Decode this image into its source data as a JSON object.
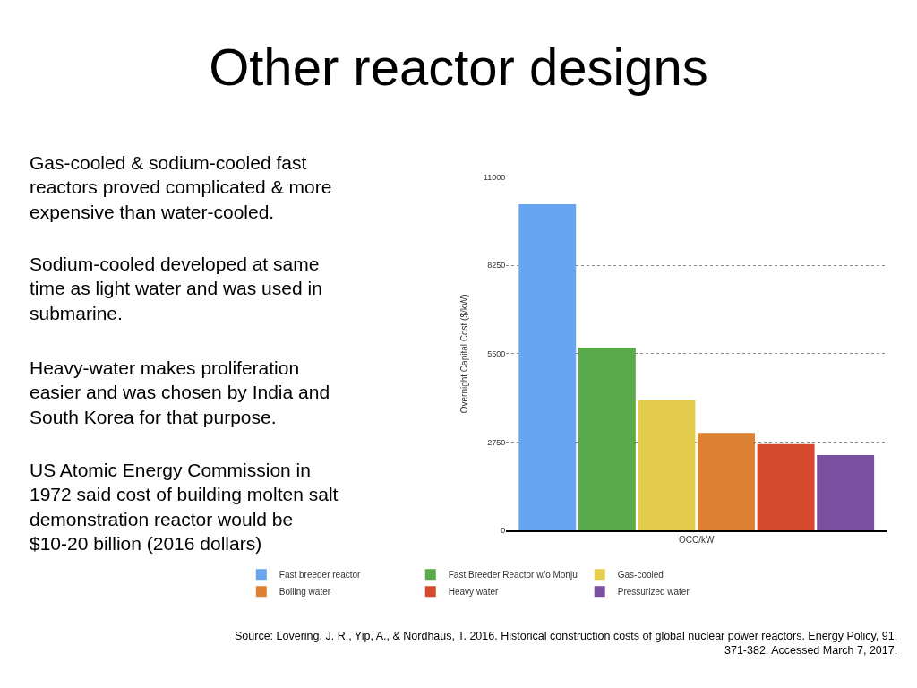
{
  "chart_data": {
    "type": "bar",
    "title": "Other reactor designs",
    "ylabel": "Overnight Capital Cost ($/kW)",
    "categories": [
      "OCC/kW"
    ],
    "series": [
      {
        "name": "Fast breeder reactor",
        "color": "#68a5f0",
        "values": [
          10150
        ]
      },
      {
        "name": "Fast Breeder Reactor w/o Monju",
        "color": "#5aa94a",
        "values": [
          5690
        ]
      },
      {
        "name": "Gas-cooled",
        "color": "#e4cc4c",
        "values": [
          4060
        ]
      },
      {
        "name": "Boiling water",
        "color": "#dd8234",
        "values": [
          3040
        ]
      },
      {
        "name": "Heavy water",
        "color": "#d5492c",
        "values": [
          2690
        ]
      },
      {
        "name": "Pressurized water",
        "color": "#7a4fa0",
        "values": [
          2350
        ]
      }
    ],
    "ylim": [
      0,
      11000
    ],
    "yticks": [
      0,
      2750,
      5500,
      8250,
      11000
    ],
    "grid": "y",
    "legend": "bottom",
    "annotations": [
      "Gas-cooled & sodium-cooled fast\nreactors proved complicated & more\nexpensive than water-cooled.",
      "Sodium-cooled developed at same\ntime as light water and was used in\nsubmarine.",
      "Heavy-water makes proliferation\neasier and was chosen by India and\nSouth Korea for that purpose.",
      "US Atomic Energy Commission in\n1972 said cost of building molten salt\ndemonstration reactor would be\n$10-20 billion (2016 dollars)",
      "Source: Lovering, J. R., Yip, A., & Nordhaus, T. 2016. Historical construction costs of global nuclear power reactors. Energy Policy, 91,\n371-382. Accessed March 7, 2017."
    ]
  }
}
